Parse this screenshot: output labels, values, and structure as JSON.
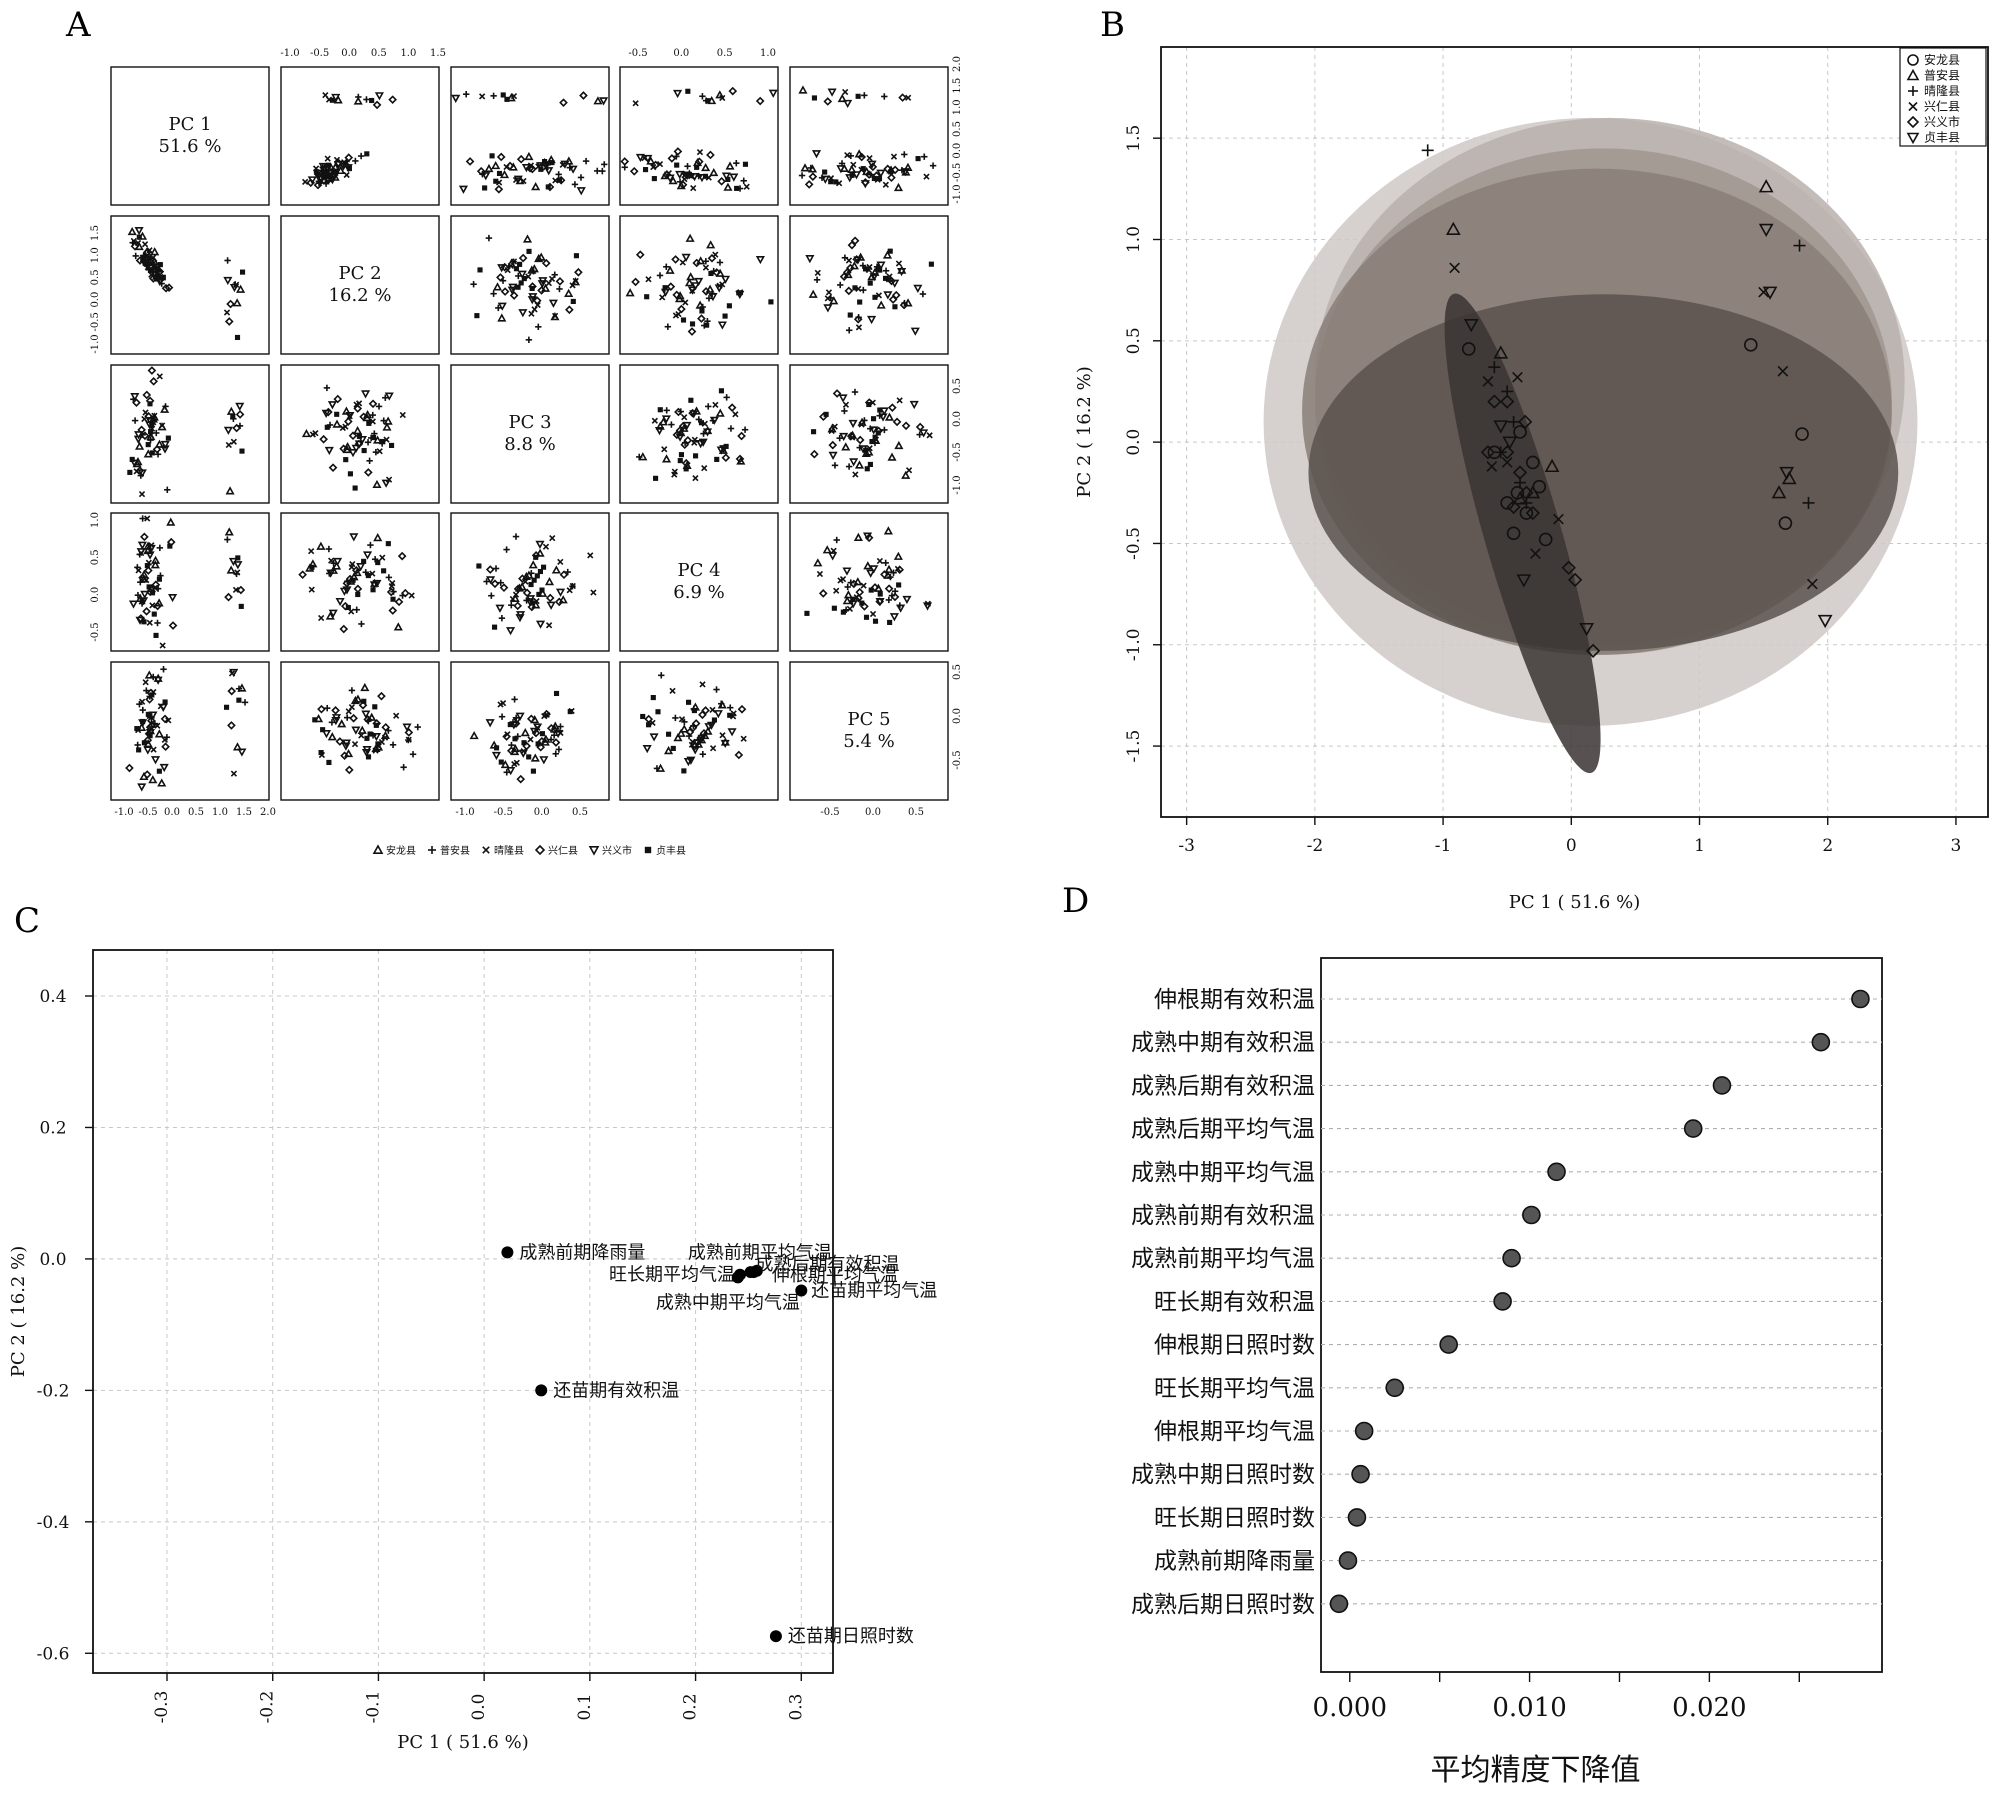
{
  "panels": {
    "A": {
      "letter": "A",
      "diag_labels": [
        {
          "name": "PC 1",
          "pct": "51.6 %"
        },
        {
          "name": "PC 2",
          "pct": "16.2 %"
        },
        {
          "name": "PC 3",
          "pct": "8.8 %"
        },
        {
          "name": "PC 4",
          "pct": "6.9 %"
        },
        {
          "name": "PC 5",
          "pct": "5.4 %"
        }
      ],
      "top_ticks": {
        "col2": [
          "-1.0",
          "-0.5",
          "0.0",
          "0.5",
          "1.0",
          "1.5"
        ],
        "col4": [
          "-0.5",
          "0.0",
          "0.5",
          "1.0"
        ]
      },
      "right_ticks": {
        "row1": [
          "2.0",
          "1.5",
          "1.0",
          "0.5",
          "0.0",
          "-0.5",
          "-1.0"
        ],
        "row3": [
          "0.5",
          "0.0",
          "-0.5",
          "-1.0"
        ],
        "row5": [
          "0.5",
          "0.0",
          "-0.5"
        ]
      },
      "left_ticks": {
        "row2": [
          "1.5",
          "1.0",
          "0.5",
          "0.0",
          "-0.5",
          "-1.0"
        ],
        "row4": [
          "1.0",
          "0.5",
          "0.0",
          "-0.5"
        ]
      },
      "bottom_ticks": {
        "col1": [
          "-1.0",
          "-0.5",
          "0.0",
          "0.5",
          "1.0",
          "1.5",
          "2.0"
        ],
        "col3": [
          "-1.0",
          "-0.5",
          "0.0",
          "0.5"
        ],
        "col5": [
          "-0.5",
          "0.0",
          "0.5"
        ]
      },
      "legend": [
        {
          "symbol": "triangle",
          "label": "安龙县"
        },
        {
          "symbol": "plus",
          "label": "普安县"
        },
        {
          "symbol": "cross",
          "label": "晴隆县"
        },
        {
          "symbol": "diamond",
          "label": "兴仁县"
        },
        {
          "symbol": "triangle-down",
          "label": "兴义市"
        },
        {
          "symbol": "square",
          "label": "贞丰县"
        }
      ]
    },
    "B": {
      "letter": "B",
      "legend": [
        {
          "symbol": "circle",
          "label": "安龙县"
        },
        {
          "symbol": "triangle",
          "label": "普安县"
        },
        {
          "symbol": "plus",
          "label": "晴隆县"
        },
        {
          "symbol": "cross",
          "label": "兴仁县"
        },
        {
          "symbol": "diamond",
          "label": "兴义市"
        },
        {
          "symbol": "triangle-down",
          "label": "贞丰县"
        }
      ]
    },
    "C": {
      "letter": "C"
    },
    "D": {
      "letter": "D"
    }
  },
  "chart_data": [
    {
      "panel": "A",
      "type": "scatter",
      "description_of_matrix": "5x5 pairs plot of principal component scores PC1-PC5",
      "components": [
        "PC 1",
        "PC 2",
        "PC 3",
        "PC 4",
        "PC 5"
      ],
      "variance_pct": [
        51.6,
        16.2,
        8.8,
        6.9,
        5.4
      ]
    },
    {
      "panel": "B",
      "type": "scatter",
      "xlabel": "PC 1 ( 51.6 %)",
      "ylabel": "PC 2 ( 16.2 %)",
      "xlim": [
        -3.2,
        3.25
      ],
      "ylim": [
        -1.85,
        1.95
      ],
      "xticks": [
        "-3",
        "-2",
        "-1",
        "0",
        "1",
        "2",
        "3"
      ],
      "yticks": [
        "-1.5",
        "-1.0",
        "-0.5",
        "0.0",
        "0.5",
        "1.0",
        "1.5"
      ],
      "grid": true,
      "legend_position": "top-right",
      "ellipses": [
        {
          "cx": 0.15,
          "cy": 0.1,
          "rx": 2.55,
          "ry": 1.5,
          "angle": 0,
          "fill": "#cfc9c6"
        },
        {
          "cx": 0.3,
          "cy": 0.3,
          "rx": 2.3,
          "ry": 1.3,
          "angle": 0,
          "fill": "#b8b0ab"
        },
        {
          "cx": 0.25,
          "cy": 0.2,
          "rx": 2.25,
          "ry": 1.25,
          "angle": 0,
          "fill": "#a0968f"
        },
        {
          "cx": 0.2,
          "cy": 0.15,
          "rx": 2.3,
          "ry": 1.2,
          "angle": 0,
          "fill": "#8a7f78"
        },
        {
          "cx": 0.25,
          "cy": -0.15,
          "rx": 2.3,
          "ry": 0.88,
          "angle": 0,
          "fill": "#5a524d"
        },
        {
          "cx": -0.38,
          "cy": -0.45,
          "rx": 0.3,
          "ry": 1.23,
          "angle": -16,
          "fill": "#3a3432"
        }
      ],
      "series": [
        {
          "name": "安龙县",
          "symbol": "circle",
          "points": [
            [
              -0.8,
              0.46
            ],
            [
              -0.42,
              -0.25
            ],
            [
              -0.4,
              0.05
            ],
            [
              -0.3,
              -0.1
            ],
            [
              -0.25,
              -0.22
            ],
            [
              -0.35,
              -0.35
            ],
            [
              -0.5,
              -0.3
            ],
            [
              -0.45,
              -0.45
            ],
            [
              -0.2,
              -0.48
            ],
            [
              1.4,
              0.48
            ],
            [
              1.8,
              0.04
            ],
            [
              1.67,
              -0.4
            ],
            [
              -0.6,
              -0.05
            ]
          ]
        },
        {
          "name": "普安县",
          "symbol": "triangle",
          "points": [
            [
              -0.92,
              1.05
            ],
            [
              1.52,
              1.26
            ],
            [
              1.62,
              -0.25
            ],
            [
              1.7,
              -0.18
            ],
            [
              -0.55,
              0.44
            ],
            [
              -0.15,
              -0.12
            ],
            [
              -0.3,
              -0.25
            ],
            [
              -0.4,
              -0.28
            ]
          ]
        },
        {
          "name": "晴隆县",
          "symbol": "plus",
          "points": [
            [
              -1.12,
              1.44
            ],
            [
              1.78,
              0.97
            ],
            [
              1.85,
              -0.3
            ],
            [
              -0.6,
              0.37
            ],
            [
              -0.5,
              0.25
            ],
            [
              -0.45,
              0.1
            ],
            [
              -0.55,
              -0.05
            ],
            [
              -0.4,
              -0.2
            ],
            [
              -0.35,
              -0.3
            ]
          ]
        },
        {
          "name": "兴仁县",
          "symbol": "cross",
          "points": [
            [
              -0.91,
              0.86
            ],
            [
              1.5,
              0.74
            ],
            [
              1.65,
              0.35
            ],
            [
              1.88,
              -0.7
            ],
            [
              -0.65,
              0.3
            ],
            [
              -0.42,
              0.32
            ],
            [
              -0.62,
              -0.12
            ],
            [
              -0.28,
              -0.55
            ],
            [
              -0.1,
              -0.38
            ],
            [
              -0.5,
              -0.1
            ]
          ]
        },
        {
          "name": "兴义市",
          "symbol": "diamond",
          "points": [
            [
              -0.6,
              0.2
            ],
            [
              -0.5,
              0.2
            ],
            [
              -0.65,
              -0.05
            ],
            [
              -0.5,
              -0.05
            ],
            [
              -0.4,
              -0.15
            ],
            [
              -0.35,
              -0.25
            ],
            [
              -0.3,
              -0.35
            ],
            [
              -0.45,
              -0.32
            ],
            [
              -0.02,
              -0.62
            ],
            [
              0.03,
              -0.68
            ],
            [
              0.17,
              -1.03
            ],
            [
              -0.36,
              0.1
            ]
          ]
        },
        {
          "name": "贞丰县",
          "symbol": "triangle-down",
          "points": [
            [
              -0.78,
              0.58
            ],
            [
              1.52,
              1.05
            ],
            [
              1.55,
              0.74
            ],
            [
              1.68,
              -0.15
            ],
            [
              1.98,
              -0.88
            ],
            [
              -0.37,
              -0.68
            ],
            [
              0.12,
              -0.92
            ],
            [
              -0.55,
              0.08
            ],
            [
              -0.48,
              0.0
            ]
          ]
        }
      ]
    },
    {
      "panel": "C",
      "type": "scatter",
      "xlabel": "PC 1 ( 51.6 %)",
      "ylabel": "PC 2 ( 16.2 %)",
      "xlim": [
        -0.37,
        0.33
      ],
      "ylim": [
        -0.63,
        0.47
      ],
      "xticks": [
        "-0.3",
        "-0.2",
        "-0.1",
        "0.0",
        "0.1",
        "0.2",
        "0.3"
      ],
      "yticks": [
        "0.4",
        "0.2",
        "0.0",
        "-0.2",
        "-0.4",
        "-0.6"
      ],
      "grid": true,
      "points": [
        {
          "label": "成熟前期降雨量",
          "x": 0.022,
          "y": 0.01,
          "anchor": "start",
          "dx": 12,
          "dy": 0
        },
        {
          "label": "成熟前期平均气温",
          "x": 0.258,
          "y": -0.018,
          "anchor": "end",
          "dx": 75,
          "dy": -18
        },
        {
          "label": "成熟后期有效积温",
          "x": 0.252,
          "y": -0.02,
          "anchor": "start",
          "dx": 5,
          "dy": -8
        },
        {
          "label": "旺长期平均气温",
          "x": 0.242,
          "y": -0.024,
          "anchor": "end",
          "dx": -5,
          "dy": 0
        },
        {
          "label": "伸根期平均气温",
          "x": 0.255,
          "y": -0.02,
          "anchor": "start",
          "dx": 18,
          "dy": 3
        },
        {
          "label": "成熟中期平均气温",
          "x": 0.24,
          "y": -0.028,
          "anchor": "start",
          "dx": -82,
          "dy": 25
        },
        {
          "label": "还苗期平均气温",
          "x": 0.3,
          "y": -0.048,
          "anchor": "start",
          "dx": 10,
          "dy": 0
        },
        {
          "label": "还苗期有效积温",
          "x": 0.054,
          "y": -0.2,
          "anchor": "start",
          "dx": 12,
          "dy": 0
        },
        {
          "label": "还苗期日照时数",
          "x": 0.276,
          "y": -0.574,
          "anchor": "start",
          "dx": 12,
          "dy": 0
        }
      ]
    },
    {
      "panel": "D",
      "type": "scatter",
      "chart_kind": "dot plot",
      "xlabel": "平均精度下降值",
      "xlim": [
        -0.0016,
        0.0296
      ],
      "xticks": [
        "0.000",
        "0.010",
        "0.020"
      ],
      "grid": true,
      "categories": [
        "伸根期有效积温",
        "成熟中期有效积温",
        "成熟后期有效积温",
        "成熟后期平均气温",
        "成熟中期平均气温",
        "成熟前期有效积温",
        "成熟前期平均气温",
        "旺长期有效积温",
        "伸根期日照时数",
        "旺长期平均气温",
        "伸根期平均气温",
        "成熟中期日照时数",
        "旺长期日照时数",
        "成熟前期降雨量",
        "成熟后期日照时数"
      ],
      "values": [
        0.0284,
        0.0262,
        0.0207,
        0.0191,
        0.0115,
        0.0101,
        0.009,
        0.0085,
        0.0055,
        0.0025,
        0.0008,
        0.0006,
        0.0004,
        -0.0001,
        -0.0006
      ]
    }
  ]
}
